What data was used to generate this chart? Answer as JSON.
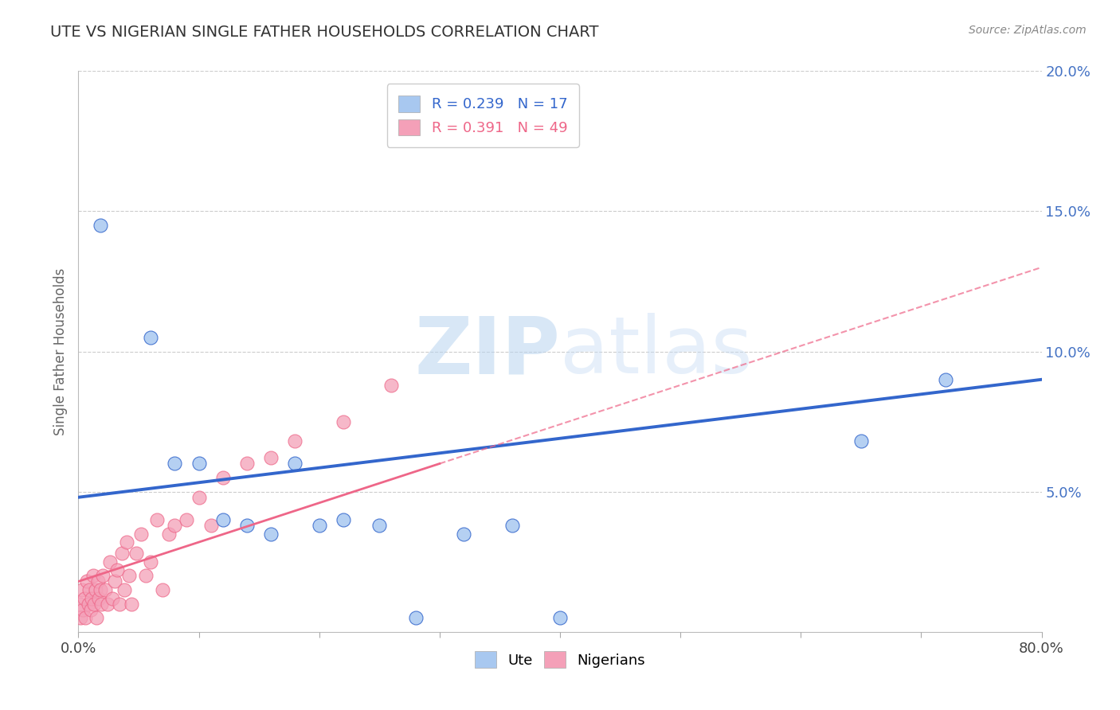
{
  "title": "UTE VS NIGERIAN SINGLE FATHER HOUSEHOLDS CORRELATION CHART",
  "source": "Source: ZipAtlas.com",
  "ylabel": "Single Father Households",
  "xlim": [
    0,
    0.8
  ],
  "ylim": [
    0,
    0.2
  ],
  "xticks": [
    0.0,
    0.1,
    0.2,
    0.3,
    0.4,
    0.5,
    0.6,
    0.7,
    0.8
  ],
  "yticks": [
    0.0,
    0.05,
    0.1,
    0.15,
    0.2
  ],
  "legend_r_ute": "R = 0.239",
  "legend_n_ute": "N = 17",
  "legend_r_nig": "R = 0.391",
  "legend_n_nig": "N = 49",
  "ute_color": "#A8C8F0",
  "nig_color": "#F4A0B8",
  "ute_line_color": "#3366CC",
  "nig_line_color": "#EE6688",
  "watermark_zip": "ZIP",
  "watermark_atlas": "atlas",
  "background_color": "#FFFFFF",
  "grid_color": "#CCCCCC",
  "ute_x": [
    0.018,
    0.06,
    0.08,
    0.1,
    0.12,
    0.14,
    0.16,
    0.18,
    0.2,
    0.22,
    0.25,
    0.28,
    0.32,
    0.36,
    0.4,
    0.65,
    0.72
  ],
  "ute_y": [
    0.145,
    0.105,
    0.06,
    0.06,
    0.04,
    0.038,
    0.035,
    0.06,
    0.038,
    0.04,
    0.038,
    0.005,
    0.035,
    0.038,
    0.005,
    0.068,
    0.09
  ],
  "nig_x": [
    0.001,
    0.002,
    0.003,
    0.004,
    0.005,
    0.006,
    0.007,
    0.008,
    0.009,
    0.01,
    0.011,
    0.012,
    0.013,
    0.014,
    0.015,
    0.016,
    0.017,
    0.018,
    0.019,
    0.02,
    0.022,
    0.024,
    0.026,
    0.028,
    0.03,
    0.032,
    0.034,
    0.036,
    0.038,
    0.04,
    0.042,
    0.044,
    0.048,
    0.052,
    0.056,
    0.06,
    0.065,
    0.07,
    0.075,
    0.08,
    0.09,
    0.1,
    0.11,
    0.12,
    0.14,
    0.16,
    0.18,
    0.22,
    0.26
  ],
  "nig_y": [
    0.01,
    0.005,
    0.015,
    0.008,
    0.012,
    0.005,
    0.018,
    0.01,
    0.015,
    0.008,
    0.012,
    0.02,
    0.01,
    0.015,
    0.005,
    0.018,
    0.012,
    0.015,
    0.01,
    0.02,
    0.015,
    0.01,
    0.025,
    0.012,
    0.018,
    0.022,
    0.01,
    0.028,
    0.015,
    0.032,
    0.02,
    0.01,
    0.028,
    0.035,
    0.02,
    0.025,
    0.04,
    0.015,
    0.035,
    0.038,
    0.04,
    0.048,
    0.038,
    0.055,
    0.06,
    0.062,
    0.068,
    0.075,
    0.088
  ],
  "ute_line_x0": 0.0,
  "ute_line_y0": 0.048,
  "ute_line_x1": 0.8,
  "ute_line_y1": 0.09,
  "nig_line_x0": 0.0,
  "nig_line_y0": 0.018,
  "nig_line_x1": 0.8,
  "nig_line_y1": 0.13
}
